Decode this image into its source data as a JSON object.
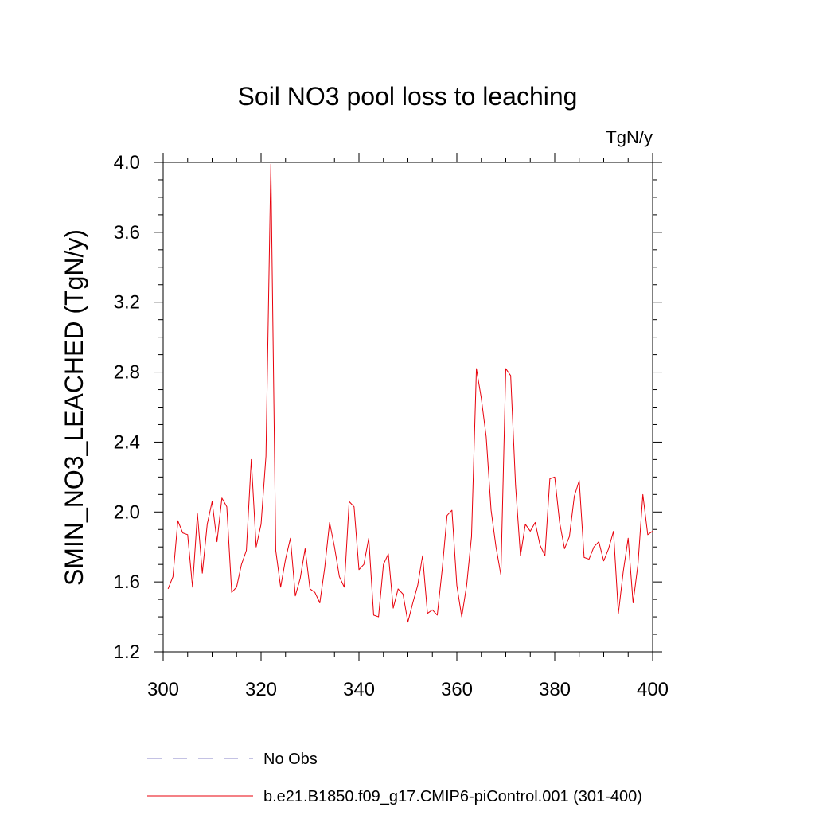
{
  "chart_data": {
    "type": "line",
    "title": "Soil NO3 pool loss to leaching",
    "units_label": "TgN/y",
    "xlabel": "",
    "ylabel": "SMIN_NO3_LEACHED  (TgN/y)",
    "xlim": [
      300,
      400
    ],
    "ylim": [
      1.2,
      4.0
    ],
    "x_ticks": [
      300,
      320,
      340,
      360,
      380,
      400
    ],
    "x_tick_labels": [
      "300",
      "320",
      "340",
      "360",
      "380",
      "400"
    ],
    "y_ticks": [
      1.2,
      1.6,
      2.0,
      2.4,
      2.8,
      3.2,
      3.6,
      4.0
    ],
    "y_tick_labels": [
      "1.2",
      "1.6",
      "2.0",
      "2.4",
      "2.8",
      "3.2",
      "3.6",
      "4.0"
    ],
    "grid": false,
    "legend_position": "bottom",
    "legend": [
      {
        "label": "No Obs",
        "color": "#8a86c8",
        "style": "dashed"
      },
      {
        "label": "b.e21.B1850.f09_g17.CMIP6-piControl.001 (301-400)",
        "color": "#e8000b",
        "style": "solid"
      }
    ],
    "series": [
      {
        "name": "b.e21.B1850.f09_g17.CMIP6-piControl.001 (301-400)",
        "color": "#e8000b",
        "x": [
          301,
          302,
          303,
          304,
          305,
          306,
          307,
          308,
          309,
          310,
          311,
          312,
          313,
          314,
          315,
          316,
          317,
          318,
          319,
          320,
          321,
          322,
          323,
          324,
          325,
          326,
          327,
          328,
          329,
          330,
          331,
          332,
          333,
          334,
          335,
          336,
          337,
          338,
          339,
          340,
          341,
          342,
          343,
          344,
          345,
          346,
          347,
          348,
          349,
          350,
          351,
          352,
          353,
          354,
          355,
          356,
          357,
          358,
          359,
          360,
          361,
          362,
          363,
          364,
          365,
          366,
          367,
          368,
          369,
          370,
          371,
          372,
          373,
          374,
          375,
          376,
          377,
          378,
          379,
          380,
          381,
          382,
          383,
          384,
          385,
          386,
          387,
          388,
          389,
          390,
          391,
          392,
          393,
          394,
          395,
          396,
          397,
          398,
          399,
          400
        ],
        "values": [
          1.56,
          1.63,
          1.95,
          1.88,
          1.87,
          1.57,
          1.99,
          1.65,
          1.93,
          2.06,
          1.83,
          2.08,
          2.03,
          1.54,
          1.57,
          1.7,
          1.78,
          2.3,
          1.8,
          1.93,
          2.32,
          3.99,
          1.78,
          1.57,
          1.73,
          1.85,
          1.52,
          1.62,
          1.79,
          1.56,
          1.54,
          1.48,
          1.68,
          1.94,
          1.8,
          1.63,
          1.57,
          2.06,
          2.03,
          1.67,
          1.7,
          1.85,
          1.41,
          1.4,
          1.7,
          1.76,
          1.45,
          1.56,
          1.53,
          1.37,
          1.48,
          1.58,
          1.75,
          1.42,
          1.44,
          1.41,
          1.67,
          1.98,
          2.01,
          1.58,
          1.4,
          1.58,
          1.86,
          2.82,
          2.65,
          2.43,
          2.01,
          1.8,
          1.64,
          2.82,
          2.78,
          2.15,
          1.75,
          1.93,
          1.89,
          1.94,
          1.81,
          1.75,
          2.19,
          2.2,
          1.94,
          1.79,
          1.86,
          2.09,
          2.18,
          1.74,
          1.73,
          1.8,
          1.83,
          1.72,
          1.79,
          1.89,
          1.42,
          1.66,
          1.85,
          1.48,
          1.7,
          2.1,
          1.87,
          1.89
        ]
      }
    ]
  }
}
